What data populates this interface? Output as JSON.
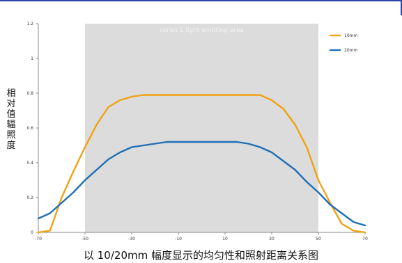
{
  "chart_data": {
    "type": "line",
    "title": "",
    "xlabel": "",
    "ylabel": "相对值辐照度",
    "caption": "以 10/20mm 幅度显示的均匀性和照射距离关系图",
    "band_label": "series L light emitting area",
    "band_range": [
      -50,
      50
    ],
    "band_color": "#dcdcdc",
    "xlim": [
      -70,
      70
    ],
    "ylim": [
      0,
      1.2
    ],
    "x_ticks": [
      "-70",
      "-50",
      "-30",
      "-10",
      "10",
      "30",
      "50",
      "70"
    ],
    "y_ticks": [
      "0",
      "0.2",
      "0.4",
      "0.6",
      "0.8",
      "1",
      "1.2"
    ],
    "legend_position": "top-right",
    "grid": false,
    "series": [
      {
        "name": "10mm",
        "color": "#f0a20f",
        "x": [
          -70,
          -65,
          -60,
          -55,
          -50,
          -45,
          -40,
          -35,
          -30,
          -25,
          -20,
          -15,
          -10,
          -5,
          0,
          5,
          10,
          15,
          20,
          25,
          30,
          35,
          40,
          45,
          50,
          55,
          60,
          65,
          70
        ],
        "y": [
          0.0,
          0.01,
          0.2,
          0.35,
          0.49,
          0.62,
          0.72,
          0.76,
          0.78,
          0.79,
          0.79,
          0.79,
          0.79,
          0.79,
          0.79,
          0.79,
          0.79,
          0.79,
          0.79,
          0.79,
          0.76,
          0.71,
          0.62,
          0.49,
          0.3,
          0.17,
          0.05,
          0.01,
          0.0
        ]
      },
      {
        "name": "20mm",
        "color": "#1f6fb5",
        "x": [
          -70,
          -65,
          -60,
          -55,
          -50,
          -45,
          -40,
          -35,
          -30,
          -25,
          -20,
          -15,
          -10,
          -5,
          0,
          5,
          10,
          15,
          20,
          25,
          30,
          35,
          40,
          45,
          50,
          55,
          60,
          65,
          70
        ],
        "y": [
          0.08,
          0.11,
          0.17,
          0.23,
          0.3,
          0.36,
          0.42,
          0.46,
          0.49,
          0.5,
          0.51,
          0.52,
          0.52,
          0.52,
          0.52,
          0.52,
          0.52,
          0.52,
          0.51,
          0.49,
          0.46,
          0.41,
          0.36,
          0.29,
          0.23,
          0.16,
          0.11,
          0.06,
          0.04
        ]
      }
    ]
  }
}
